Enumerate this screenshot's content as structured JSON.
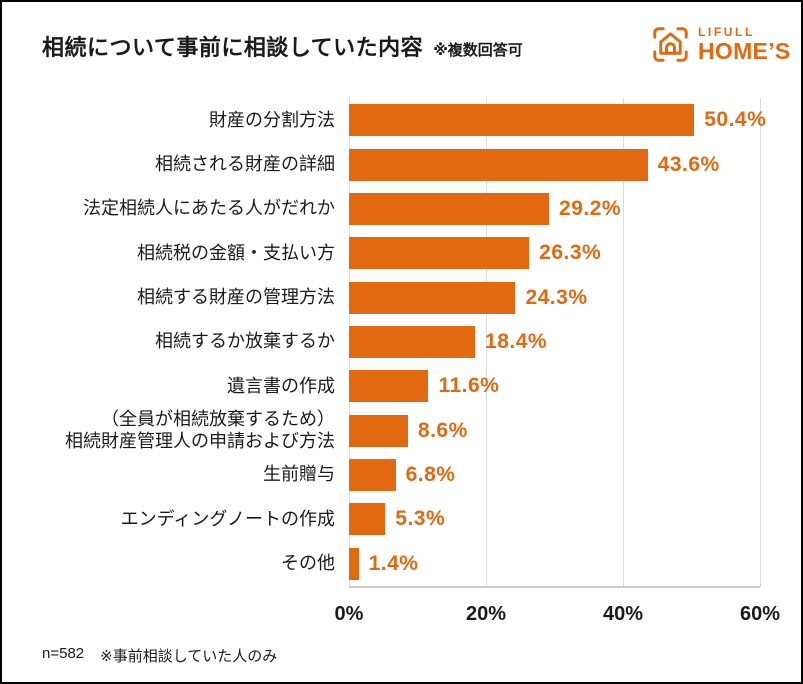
{
  "header": {
    "title": "相続について事前に相談していた内容",
    "note": "※複数回答可"
  },
  "logo": {
    "brand_top": "LIFULL",
    "brand_bottom": "HOME’S",
    "color": "#E2690F"
  },
  "chart_data": {
    "type": "bar",
    "orientation": "horizontal",
    "title": "相続について事前に相談していた内容",
    "subtitle": "※複数回答可",
    "unit": "%",
    "categories": [
      "財産の分割方法",
      "相続される財産の詳細",
      "法定相続人にあたる人がだれか",
      "相続税の金額・支払い方",
      "相続する財産の管理方法",
      "相続するか放棄するか",
      "遺言書の作成",
      "（全員が相続放棄するため）\n相続財産管理人の申請および方法",
      "生前贈与",
      "エンディングノートの作成",
      "その他"
    ],
    "values": [
      50.4,
      43.6,
      29.2,
      26.3,
      24.3,
      18.4,
      11.6,
      8.6,
      6.8,
      5.3,
      1.4
    ],
    "value_labels": [
      "50.4%",
      "43.6%",
      "29.2%",
      "26.3%",
      "24.3%",
      "18.4%",
      "11.6%",
      "8.6%",
      "6.8%",
      "5.3%",
      "1.4%"
    ],
    "x_ticks": [
      "0%",
      "20%",
      "40%",
      "60%"
    ],
    "x_tick_values": [
      0,
      20,
      40,
      60
    ],
    "xlim": [
      0,
      60
    ],
    "grid": true,
    "legend": false,
    "bar_color": "#E2690F",
    "value_label_color": "#E2690F",
    "grid_color": "#dcdcdc"
  },
  "footer": {
    "sample": "n=582",
    "note": "※事前相談していた人のみ"
  }
}
